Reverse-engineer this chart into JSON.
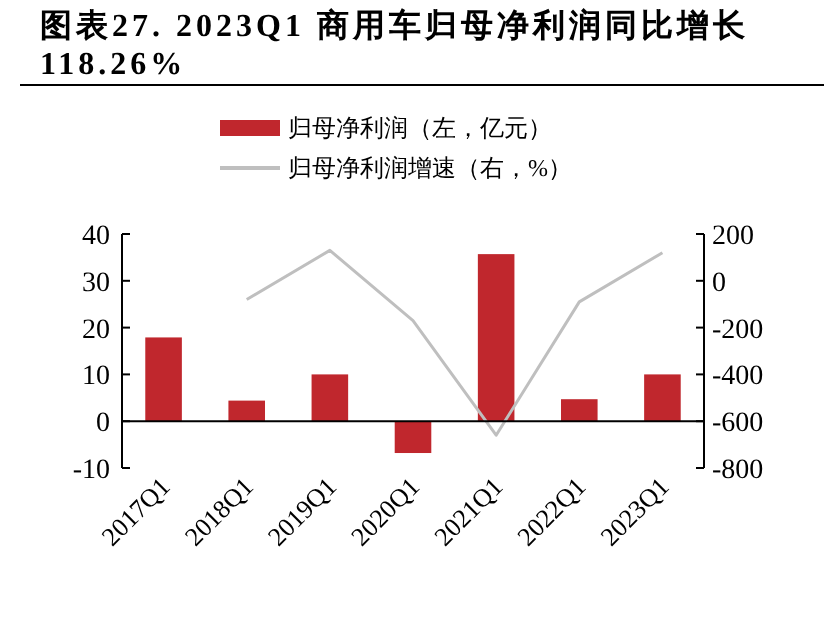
{
  "chart_data": {
    "type": "bar",
    "title": "图表27. 2023Q1  商用车归母净利润同比增长118.26%",
    "categories": [
      "2017Q1",
      "2018Q1",
      "2019Q1",
      "2020Q1",
      "2021Q1",
      "2022Q1",
      "2023Q1"
    ],
    "series": [
      {
        "name": "归母净利润（左，亿元）",
        "color": "#c0272d",
        "values": [
          17.9,
          4.4,
          10.0,
          -6.8,
          35.7,
          4.7,
          10.0
        ]
      },
      {
        "name": "归母净利润增速（右，%）",
        "type": "line",
        "axis": "y2",
        "color": "#bfbfbf",
        "values": [
          null,
          -80,
          130,
          -170,
          -660,
          -90,
          120
        ]
      }
    ],
    "ylim": [
      -10,
      40
    ],
    "yticks": [
      -10,
      0,
      10,
      20,
      30,
      40
    ],
    "y2lim": [
      -800,
      200
    ],
    "y2ticks": [
      -800,
      -600,
      -400,
      -200,
      0,
      200
    ],
    "legend": "top",
    "grid": false
  }
}
